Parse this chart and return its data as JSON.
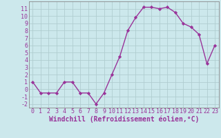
{
  "x": [
    0,
    1,
    2,
    3,
    4,
    5,
    6,
    7,
    8,
    9,
    10,
    11,
    12,
    13,
    14,
    15,
    16,
    17,
    18,
    19,
    20,
    21,
    22,
    23
  ],
  "y": [
    1,
    -0.5,
    -0.5,
    -0.5,
    1,
    1,
    -0.5,
    -0.5,
    -2,
    -0.5,
    2,
    4.5,
    8,
    9.8,
    11.2,
    11.2,
    11,
    11.2,
    10.5,
    9,
    8.5,
    7.5,
    3.5,
    6
  ],
  "line_color": "#993399",
  "marker": "D",
  "marker_size": 2.2,
  "bg_color": "#cce8ec",
  "grid_color": "#b0cdd0",
  "xlabel": "Windchill (Refroidissement éolien,°C)",
  "ylim": [
    -2.5,
    12
  ],
  "xlim": [
    -0.5,
    23.5
  ],
  "yticks": [
    -2,
    -1,
    0,
    1,
    2,
    3,
    4,
    5,
    6,
    7,
    8,
    9,
    10,
    11
  ],
  "xticks": [
    0,
    1,
    2,
    3,
    4,
    5,
    6,
    7,
    8,
    9,
    10,
    11,
    12,
    13,
    14,
    15,
    16,
    17,
    18,
    19,
    20,
    21,
    22,
    23
  ],
  "tick_fontsize": 6.0,
  "xlabel_fontsize": 7.0,
  "line_width": 1.0,
  "spine_color": "#888888"
}
